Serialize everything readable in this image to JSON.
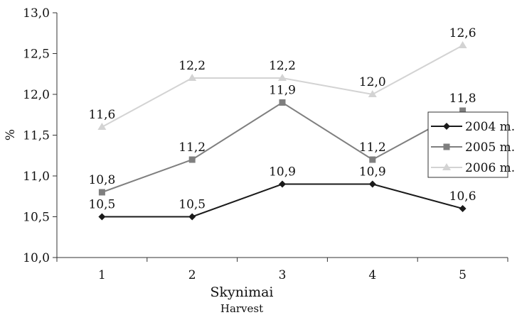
{
  "chart_data": {
    "type": "line",
    "categories": [
      "1",
      "2",
      "3",
      "4",
      "5"
    ],
    "series": [
      {
        "name": "2004 m.",
        "values": [
          10.5,
          10.5,
          10.9,
          10.9,
          10.6
        ],
        "labels": [
          "10,5",
          "10,5",
          "10,9",
          "10,9",
          "10,6"
        ],
        "color": "#1a1a1a",
        "marker": "diamond"
      },
      {
        "name": "2005 m.",
        "values": [
          10.8,
          11.2,
          11.9,
          11.2,
          11.8
        ],
        "labels": [
          "10,8",
          "11,2",
          "11,9",
          "11,2",
          "11,8"
        ],
        "color": "#7f7f7f",
        "marker": "square"
      },
      {
        "name": "2006 m.",
        "values": [
          11.6,
          12.2,
          12.2,
          12.0,
          12.6
        ],
        "labels": [
          "11,6",
          "12,2",
          "12,2",
          "12,0",
          "12,6"
        ],
        "color": "#d3d3d3",
        "marker": "triangle"
      }
    ],
    "ylim": [
      10.0,
      13.0
    ],
    "yticks": [
      10.0,
      10.5,
      11.0,
      11.5,
      12.0,
      12.5,
      13.0
    ],
    "ytick_labels": [
      "10,0",
      "10,5",
      "11,0",
      "11,5",
      "12,0",
      "12,5",
      "13,0"
    ],
    "xlabel": "Skynimai",
    "xlabel_secondary": "Harvest",
    "ylabel": "%",
    "grid": false,
    "legend_position": "right"
  }
}
